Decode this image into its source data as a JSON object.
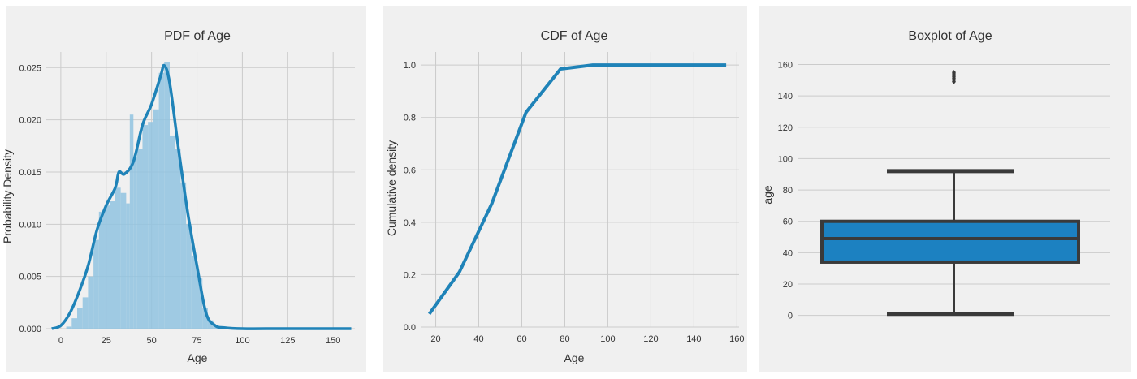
{
  "colors": {
    "panel_bg": "#f0f0f0",
    "grid": "#cbcbcb",
    "line": "#1f83b8",
    "hist_fill": "#90c3e0",
    "box_fill": "#1c81c1",
    "box_edge": "#3a3a3a"
  },
  "chart_data": [
    {
      "type": "histogram+kde",
      "title": "PDF of Age",
      "xlabel": "Age",
      "ylabel": "Probability Density",
      "xlim": [
        -8,
        162
      ],
      "ylim": [
        0,
        0.0265
      ],
      "xticks": [
        0,
        25,
        50,
        75,
        100,
        125,
        150
      ],
      "yticks": [
        0.0,
        0.005,
        0.01,
        0.015,
        0.02,
        0.025
      ],
      "ytick_labels": [
        "0.000",
        "0.005",
        "0.010",
        "0.015",
        "0.020",
        "0.025"
      ],
      "grid": true,
      "histogram": {
        "bin_edges": [
          3,
          6,
          9,
          12,
          15,
          18,
          21,
          24,
          27,
          30,
          33,
          36,
          38,
          40,
          42,
          45,
          48,
          51,
          54,
          57,
          60,
          63,
          66,
          69,
          72,
          75,
          78,
          81,
          84,
          87,
          90,
          93
        ],
        "density": [
          0.0002,
          0.001,
          0.002,
          0.003,
          0.005,
          0.0085,
          0.0112,
          0.0118,
          0.0122,
          0.0135,
          0.013,
          0.012,
          0.0205,
          0.0165,
          0.0172,
          0.0195,
          0.0198,
          0.021,
          0.0245,
          0.0255,
          0.0185,
          0.0172,
          0.014,
          0.01,
          0.007,
          0.0048,
          0.002,
          0.0008,
          0.0003,
          0.0002,
          0.0001
        ]
      },
      "kde": {
        "x": [
          -5,
          0,
          5,
          10,
          15,
          20,
          25,
          30,
          32,
          35,
          40,
          45,
          50,
          55,
          57,
          60,
          65,
          70,
          75,
          80,
          85,
          90,
          100,
          120,
          140,
          160
        ],
        "y": [
          0.0,
          0.0003,
          0.0015,
          0.0035,
          0.006,
          0.0095,
          0.0118,
          0.0135,
          0.015,
          0.0148,
          0.016,
          0.0195,
          0.0215,
          0.0242,
          0.0252,
          0.0235,
          0.017,
          0.011,
          0.006,
          0.0015,
          0.0003,
          0.0001,
          0.0,
          0.0,
          0.0,
          0.0
        ]
      }
    },
    {
      "type": "line",
      "title": "CDF of Age",
      "xlabel": "Age",
      "ylabel": "Cumulative density",
      "xlim": [
        13,
        161
      ],
      "ylim": [
        0,
        1.05
      ],
      "xticks": [
        20,
        40,
        60,
        80,
        100,
        120,
        140,
        160
      ],
      "yticks": [
        0.0,
        0.2,
        0.4,
        0.6,
        0.8,
        1.0
      ],
      "ytick_labels": [
        "0.0",
        "0.2",
        "0.4",
        "0.6",
        "0.8",
        "1.0"
      ],
      "grid": true,
      "x": [
        17,
        31,
        46,
        62,
        78,
        93,
        108,
        124,
        139,
        155
      ],
      "y": [
        0.05,
        0.21,
        0.47,
        0.82,
        0.985,
        1.0,
        1.0,
        1.0,
        1.0,
        1.0
      ]
    },
    {
      "type": "boxplot",
      "title": "Boxplot of Age",
      "xlabel": "",
      "ylabel": "age",
      "ylim": [
        -10,
        168
      ],
      "yticks": [
        0,
        20,
        40,
        60,
        80,
        100,
        120,
        140,
        160
      ],
      "ytick_labels": [
        "0",
        "20",
        "40",
        "60",
        "80",
        "100",
        "120",
        "140",
        "160"
      ],
      "grid": true,
      "box": {
        "whisker_low": 1,
        "q1": 34,
        "median": 49,
        "q3": 60,
        "whisker_high": 92
      },
      "outliers": [
        149,
        150,
        151,
        152,
        153,
        154,
        155
      ]
    }
  ]
}
